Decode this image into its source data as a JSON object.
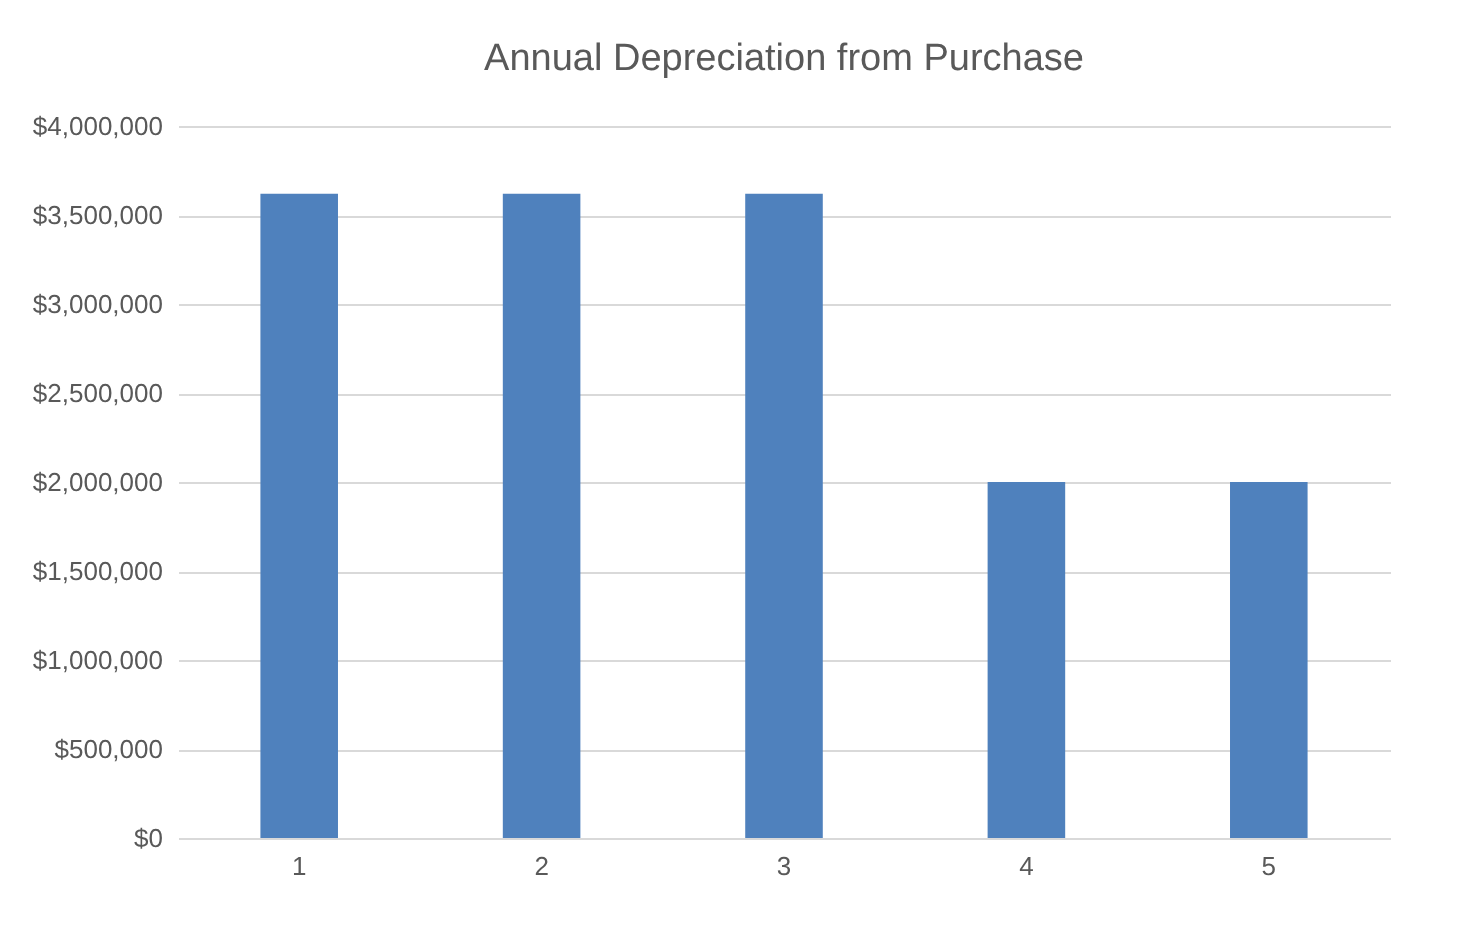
{
  "chart_data": {
    "type": "bar",
    "title": "Annual Depreciation from Purchase",
    "categories": [
      "1",
      "2",
      "3",
      "4",
      "5"
    ],
    "values": [
      3620000,
      3620000,
      3620000,
      2000000,
      2000000
    ],
    "color": "#4f81bd",
    "ylim": [
      0,
      4000000
    ],
    "yticks": [
      {
        "value": 0,
        "label": "$0"
      },
      {
        "value": 500000,
        "label": "$500,000"
      },
      {
        "value": 1000000,
        "label": "$1,000,000"
      },
      {
        "value": 1500000,
        "label": "$1,500,000"
      },
      {
        "value": 2000000,
        "label": "$2,000,000"
      },
      {
        "value": 2500000,
        "label": "$2,500,000"
      },
      {
        "value": 3000000,
        "label": "$3,000,000"
      },
      {
        "value": 3500000,
        "label": "$3,500,000"
      },
      {
        "value": 4000000,
        "label": "$4,000,000"
      }
    ],
    "grid": "y"
  }
}
